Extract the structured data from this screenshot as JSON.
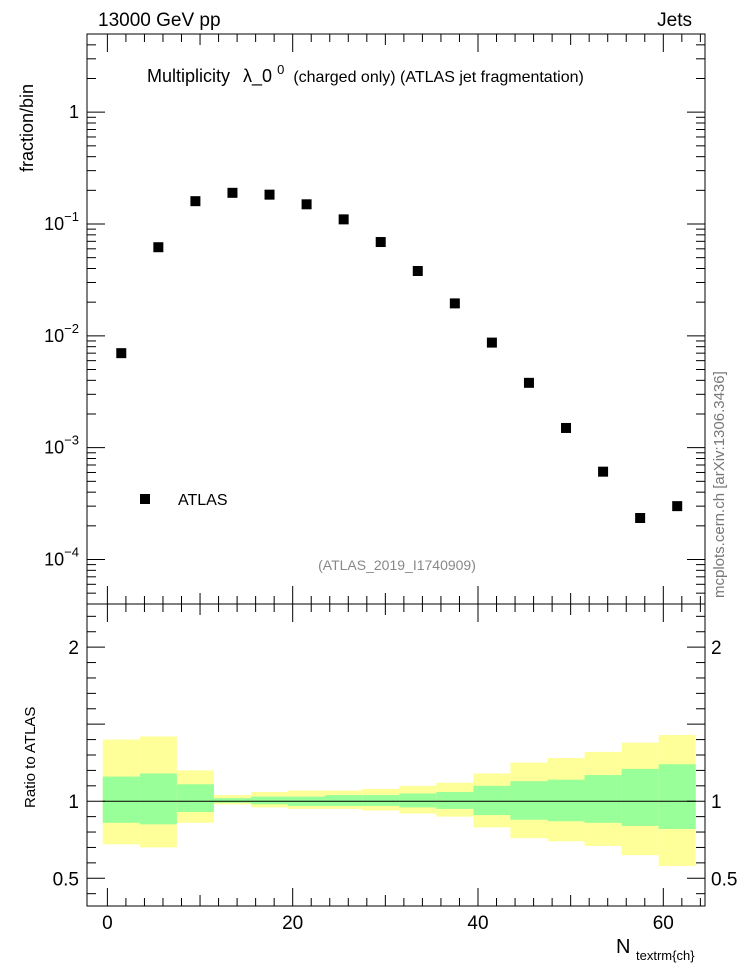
{
  "header": {
    "left": "13000 GeV pp",
    "right": "Jets"
  },
  "side_label": "mcplots.cern.ch [arXiv:1306.3436]",
  "chart_data": [
    {
      "type": "scatter",
      "title_main": "Multiplicity",
      "title_symbol": "λ_0",
      "title_sup": "0",
      "title_rest": "(charged only) (ATLAS jet fragmentation)",
      "ylabel": "fraction/bin",
      "yscale": "log",
      "ylim": [
        4e-05,
        5
      ],
      "xlim": [
        -2.2,
        64.5
      ],
      "y_ticks": [
        {
          "value": 0.0001,
          "base": "10",
          "exp": "−4"
        },
        {
          "value": 0.001,
          "base": "10",
          "exp": "−3"
        },
        {
          "value": 0.01,
          "base": "10",
          "exp": "−2"
        },
        {
          "value": 0.1,
          "base": "10",
          "exp": "−1"
        },
        {
          "value": 1,
          "base": "1",
          "exp": ""
        }
      ],
      "legend": {
        "label": "ATLAS",
        "position": "bottom-left"
      },
      "annotation": "(ATLAS_2019_I1740909)",
      "series": [
        {
          "name": "ATLAS",
          "color": "#000000",
          "x": [
            1.5,
            5.5,
            9.5,
            13.5,
            17.5,
            21.5,
            25.5,
            29.5,
            33.5,
            37.5,
            41.5,
            45.5,
            49.5,
            53.5,
            57.5,
            61.5
          ],
          "y": [
            0.007,
            0.062,
            0.16,
            0.19,
            0.183,
            0.15,
            0.11,
            0.069,
            0.038,
            0.0195,
            0.0087,
            0.0038,
            0.0015,
            0.00061,
            0.000235,
            0.0003
          ]
        }
      ]
    },
    {
      "type": "area",
      "ylabel": "Ratio to ATLAS",
      "xlabel_main": "N",
      "xlabel_sub": "textrm{ch}",
      "xlim": [
        -2.2,
        64.5
      ],
      "ylim": [
        0.32,
        2.28
      ],
      "x_ticks": [
        0,
        20,
        40,
        60
      ],
      "y_ticks": [
        0.5,
        1,
        2
      ],
      "reference_line": 1,
      "band_colors": {
        "inner": "#99ff99",
        "outer": "#ffff99"
      },
      "bins": [
        {
          "x_low": -0.5,
          "x_high": 3.5,
          "outer": [
            0.72,
            1.4
          ],
          "inner": [
            0.86,
            1.16
          ]
        },
        {
          "x_low": 3.5,
          "x_high": 7.5,
          "outer": [
            0.7,
            1.42
          ],
          "inner": [
            0.85,
            1.18
          ]
        },
        {
          "x_low": 7.5,
          "x_high": 11.5,
          "outer": [
            0.86,
            1.2
          ],
          "inner": [
            0.93,
            1.11
          ]
        },
        {
          "x_low": 11.5,
          "x_high": 15.5,
          "outer": [
            0.98,
            1.04
          ],
          "inner": [
            0.99,
            1.02
          ]
        },
        {
          "x_low": 15.5,
          "x_high": 19.5,
          "outer": [
            0.96,
            1.06
          ],
          "inner": [
            0.98,
            1.03
          ]
        },
        {
          "x_low": 19.5,
          "x_high": 23.5,
          "outer": [
            0.95,
            1.07
          ],
          "inner": [
            0.97,
            1.03
          ]
        },
        {
          "x_low": 23.5,
          "x_high": 27.5,
          "outer": [
            0.95,
            1.07
          ],
          "inner": [
            0.97,
            1.04
          ]
        },
        {
          "x_low": 27.5,
          "x_high": 31.5,
          "outer": [
            0.94,
            1.08
          ],
          "inner": [
            0.97,
            1.04
          ]
        },
        {
          "x_low": 31.5,
          "x_high": 35.5,
          "outer": [
            0.92,
            1.1
          ],
          "inner": [
            0.96,
            1.05
          ]
        },
        {
          "x_low": 35.5,
          "x_high": 39.5,
          "outer": [
            0.9,
            1.12
          ],
          "inner": [
            0.95,
            1.06
          ]
        },
        {
          "x_low": 39.5,
          "x_high": 43.5,
          "outer": [
            0.83,
            1.18
          ],
          "inner": [
            0.91,
            1.1
          ]
        },
        {
          "x_low": 43.5,
          "x_high": 47.5,
          "outer": [
            0.76,
            1.25
          ],
          "inner": [
            0.88,
            1.13
          ]
        },
        {
          "x_low": 47.5,
          "x_high": 51.5,
          "outer": [
            0.74,
            1.28
          ],
          "inner": [
            0.87,
            1.14
          ]
        },
        {
          "x_low": 51.5,
          "x_high": 55.5,
          "outer": [
            0.71,
            1.32
          ],
          "inner": [
            0.86,
            1.17
          ]
        },
        {
          "x_low": 55.5,
          "x_high": 59.5,
          "outer": [
            0.65,
            1.38
          ],
          "inner": [
            0.84,
            1.21
          ]
        },
        {
          "x_low": 59.5,
          "x_high": 63.5,
          "outer": [
            0.58,
            1.43
          ],
          "inner": [
            0.82,
            1.24
          ]
        }
      ]
    }
  ]
}
